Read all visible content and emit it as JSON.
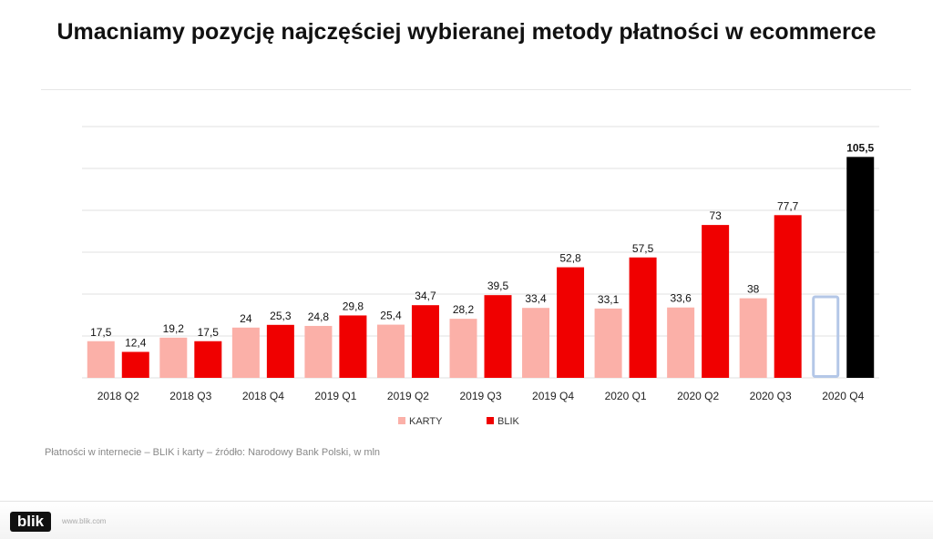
{
  "title": "Umacniamy pozycję najczęściej wybieranej metody płatności w ecommerce",
  "note": "Płatności w internecie – BLIK i karty – źródło: Narodowy Bank Polski, w mln",
  "footer": {
    "logo": "blik",
    "url": "www.blik.com"
  },
  "chart_data": {
    "type": "bar",
    "categories": [
      "2018 Q2",
      "2018 Q3",
      "2018 Q4",
      "2019 Q1",
      "2019 Q2",
      "2019 Q3",
      "2019 Q4",
      "2020 Q1",
      "2020 Q2",
      "2020 Q3",
      "2020 Q4"
    ],
    "series": [
      {
        "name": "KARTY",
        "color": "#fbb0a8",
        "values": [
          17.5,
          19.2,
          24,
          24.8,
          25.4,
          28.2,
          33.4,
          33.1,
          33.6,
          38,
          null
        ]
      },
      {
        "name": "BLIK",
        "color": "#f00000",
        "values": [
          12.4,
          17.5,
          25.3,
          29.8,
          34.7,
          39.5,
          52.8,
          57.5,
          73,
          77.7,
          105.5
        ]
      }
    ],
    "highlight": {
      "category": "2020 Q4",
      "series": "BLIK",
      "color": "#000000"
    },
    "placeholder": {
      "category": "2020 Q4",
      "series": "KARTY",
      "value": 38.7,
      "outline_color": "#b4c7e7"
    },
    "ylim": [
      0,
      120
    ],
    "ygrid_step": 20,
    "grid": true,
    "y_tick_labels_shown": false,
    "legend": "bottom-center",
    "xlabel": "",
    "ylabel": ""
  }
}
